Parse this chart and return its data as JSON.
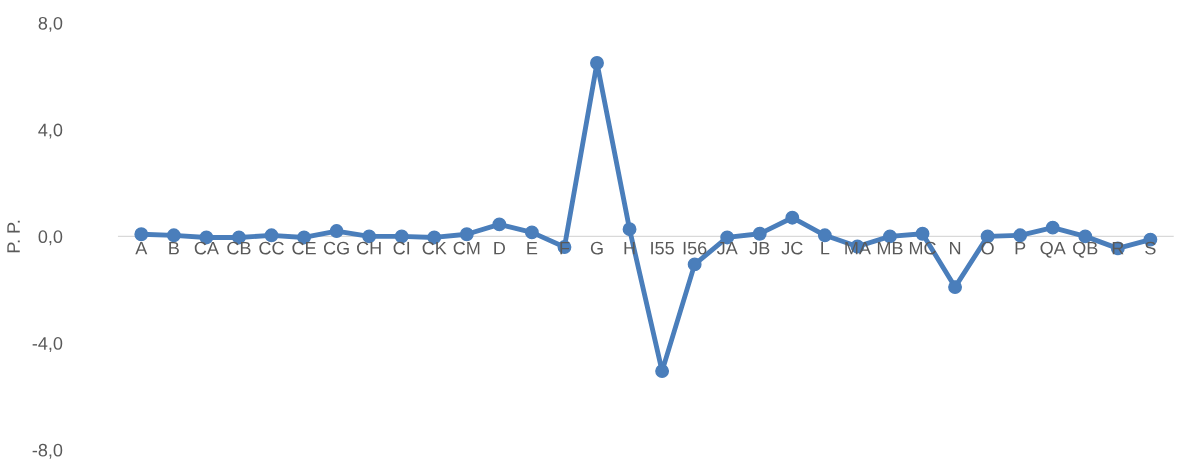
{
  "chart_data": {
    "type": "line",
    "ylabel": "P. P.",
    "categories": [
      "A",
      "B",
      "CA",
      "CB",
      "CC",
      "CE",
      "CG",
      "CH",
      "CI",
      "CK",
      "CM",
      "D",
      "E",
      "F",
      "G",
      "H",
      "I55",
      "I56",
      "JA",
      "JB",
      "JC",
      "L",
      "MA",
      "MB",
      "MC",
      "N",
      "O",
      "P",
      "QA",
      "QB",
      "R",
      "S"
    ],
    "series": [
      {
        "color": "#4a7ebb",
        "values": [
          0.08,
          0.04,
          -0.04,
          -0.04,
          0.04,
          -0.04,
          0.2,
          0.0,
          0.0,
          -0.04,
          0.08,
          0.45,
          0.15,
          -0.4,
          6.5,
          0.27,
          -5.05,
          -1.05,
          -0.04,
          0.1,
          0.7,
          0.04,
          -0.38,
          0.0,
          0.1,
          -1.9,
          0.0,
          0.04,
          0.33,
          0.0,
          -0.45,
          -0.12
        ]
      }
    ],
    "ylim": [
      -8,
      8
    ],
    "yticks": [
      {
        "value": -8,
        "label": "-8,0"
      },
      {
        "value": -4,
        "label": "-4,0"
      },
      {
        "value": 0,
        "label": "0,0"
      },
      {
        "value": 4,
        "label": "4,0"
      },
      {
        "value": 8,
        "label": "8,0"
      }
    ],
    "marker": "circle",
    "line_style": "solid",
    "grid": false,
    "legend": false
  }
}
